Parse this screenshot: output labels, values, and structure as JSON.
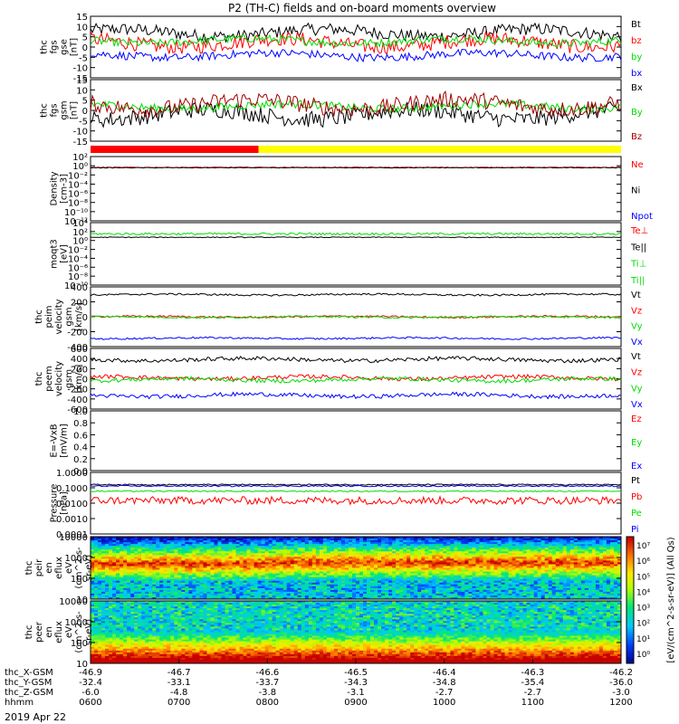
{
  "title": "P2 (TH-C) fields and on-board moments overview",
  "date": "2019 Apr 22",
  "colors": {
    "black": "#000000",
    "red": "#ff0000",
    "green": "#00dd00",
    "blue": "#0000ff",
    "darkred": "#a00000",
    "yellow": "#ffff00"
  },
  "bar": {
    "red_until_hour": 7.9,
    "end_color": "yellow",
    "start_color": "red"
  },
  "panels": [
    {
      "id": "fgs-gse",
      "ylabel": [
        "thc",
        "fgs",
        "gse",
        "[nT]"
      ],
      "scale": "linear",
      "ylim": [
        -15,
        15
      ],
      "ticks": [
        "15",
        "10",
        "5",
        "0",
        "-5",
        "-10",
        "-15"
      ],
      "legend": [
        {
          "label": "Bt",
          "color": "black"
        },
        {
          "label": "bz",
          "color": "red"
        },
        {
          "label": "by",
          "color": "green"
        },
        {
          "label": "bx",
          "color": "blue"
        }
      ],
      "series": [
        {
          "name": "Bt",
          "color": "black",
          "base": 7,
          "noise": 3
        },
        {
          "name": "bz",
          "color": "red",
          "base": 2,
          "noise": 3.5
        },
        {
          "name": "by",
          "color": "green",
          "base": 3,
          "noise": 2
        },
        {
          "name": "bx",
          "color": "blue",
          "base": -4,
          "noise": 2
        }
      ]
    },
    {
      "id": "fgs-gsm",
      "ylabel": [
        "thc",
        "fgs",
        "gsm",
        "[nT]"
      ],
      "scale": "linear",
      "ylim": [
        -15,
        15
      ],
      "ticks": [
        "15",
        "10",
        "5",
        "0",
        "-5",
        "-10",
        "-15"
      ],
      "legend": [
        {
          "label": "Bx",
          "color": "black"
        },
        {
          "label": "By",
          "color": "green"
        },
        {
          "label": "Bz",
          "color": "darkred"
        }
      ],
      "series": [
        {
          "name": "Bx",
          "color": "black",
          "base": -2,
          "noise": 4
        },
        {
          "name": "By",
          "color": "green",
          "base": 2,
          "noise": 2
        },
        {
          "name": "Bz",
          "color": "darkred",
          "base": 3,
          "noise": 4
        }
      ]
    },
    {
      "id": "density",
      "ylabel": [
        "Density",
        "[cm-3]"
      ],
      "scale": "log",
      "ylim": [
        1e-13,
        100
      ],
      "ticks": [
        "10²",
        "10⁰",
        "10⁻²",
        "10⁻⁴",
        "10⁻⁶",
        "10⁻⁸",
        "10⁻¹⁰",
        "10⁻¹²"
      ],
      "legend": [
        {
          "label": "Ne",
          "color": "red"
        },
        {
          "label": "Ni",
          "color": "black"
        },
        {
          "label": "Npot",
          "color": "blue"
        }
      ],
      "series": [
        {
          "name": "Ne",
          "color": "red",
          "base": 0.3,
          "noise": 0.2
        },
        {
          "name": "Ni",
          "color": "black",
          "base": 0.25,
          "noise": 0.15
        }
      ]
    },
    {
      "id": "temperature",
      "ylabel": [
        "moqt3",
        "[eV]"
      ],
      "scale": "log",
      "ylim": [
        1e-11,
        10000
      ],
      "ticks": [
        "10⁴",
        "10²",
        "10⁰",
        "10⁻²",
        "10⁻⁴",
        "10⁻⁶",
        "10⁻⁸",
        "10⁻¹⁰"
      ],
      "legend": [
        {
          "label": "Te⊥",
          "color": "red"
        },
        {
          "label": "Te||",
          "color": "black"
        },
        {
          "label": "Ti⊥",
          "color": "green"
        },
        {
          "label": "Ti||",
          "color": "green"
        }
      ],
      "series": [
        {
          "name": "Te",
          "color": "black",
          "base": 3,
          "noise": 0.2
        },
        {
          "name": "Ti",
          "color": "green",
          "base": 20,
          "noise": 0.5
        }
      ]
    },
    {
      "id": "peim-velocity",
      "ylabel": [
        "thc",
        "peim",
        "velocity",
        "gsm",
        "[km/s]"
      ],
      "scale": "linear",
      "ylim": [
        -500,
        500
      ],
      "ticks": [
        "400",
        "200",
        "0",
        "-200",
        "-400"
      ],
      "legend": [
        {
          "label": "Vt",
          "color": "black"
        },
        {
          "label": "Vz",
          "color": "red"
        },
        {
          "label": "Vy",
          "color": "green"
        },
        {
          "label": "Vx",
          "color": "blue"
        }
      ],
      "series": [
        {
          "name": "Vt",
          "color": "black",
          "base": 370,
          "noise": 15
        },
        {
          "name": "Vz",
          "color": "red",
          "base": 0,
          "noise": 15
        },
        {
          "name": "Vy",
          "color": "green",
          "base": -5,
          "noise": 15
        },
        {
          "name": "Vx",
          "color": "blue",
          "base": -360,
          "noise": 15
        }
      ]
    },
    {
      "id": "peem-velocity",
      "ylabel": [
        "thc",
        "peem",
        "velocity",
        "gsm",
        "[km/s]"
      ],
      "scale": "linear",
      "ylim": [
        -600,
        600
      ],
      "ticks": [
        "600",
        "400",
        "200",
        "0",
        "-200",
        "-400",
        "-600"
      ],
      "legend": [
        {
          "label": "Vt",
          "color": "black"
        },
        {
          "label": "Vz",
          "color": "red"
        },
        {
          "label": "Vy",
          "color": "green"
        },
        {
          "label": "Vx",
          "color": "blue"
        }
      ],
      "series": [
        {
          "name": "Vt",
          "color": "black",
          "base": 380,
          "noise": 40
        },
        {
          "name": "Vz",
          "color": "red",
          "base": 20,
          "noise": 40
        },
        {
          "name": "Vy",
          "color": "green",
          "base": -20,
          "noise": 40
        },
        {
          "name": "Vx",
          "color": "blue",
          "base": -330,
          "noise": 40
        }
      ]
    },
    {
      "id": "efield",
      "ylabel": [
        "E=-VxB",
        "[mV/m]"
      ],
      "scale": "linear",
      "ylim": [
        0,
        1
      ],
      "ticks": [
        "1.0",
        "0.8",
        "0.6",
        "0.4",
        "0.2",
        "0.0"
      ],
      "legend": [
        {
          "label": "Ez",
          "color": "red"
        },
        {
          "label": "Ey",
          "color": "green"
        },
        {
          "label": "Ex",
          "color": "blue"
        }
      ],
      "series": []
    },
    {
      "id": "pressure",
      "ylabel": [
        "Pressure",
        "[nPa]"
      ],
      "scale": "log",
      "ylim": [
        0.0001,
        1
      ],
      "ticks": [
        "1.0000",
        "0.1000",
        "0.0100",
        "0.0010",
        "0.0001"
      ],
      "legend": [
        {
          "label": "Pt",
          "color": "black"
        },
        {
          "label": "Pb",
          "color": "red"
        },
        {
          "label": "Pe",
          "color": "green"
        },
        {
          "label": "Pi",
          "color": "blue"
        }
      ],
      "series": [
        {
          "name": "Pt",
          "color": "black",
          "base": 0.16,
          "noise": 0.08
        },
        {
          "name": "Pi",
          "color": "blue",
          "base": 0.13,
          "noise": 0.08
        },
        {
          "name": "Pe",
          "color": "green",
          "base": 0.06,
          "noise": 0.08
        },
        {
          "name": "Pb",
          "color": "red",
          "base": 0.015,
          "noise": 0.5
        }
      ]
    },
    {
      "id": "peir-spec",
      "ylabel": [
        "thc",
        "peir",
        "en",
        "eflux",
        "eV",
        "(cm^2-s-",
        "sr-eV)"
      ],
      "scale": "log",
      "spectrogram": true,
      "ylim": [
        5,
        40000
      ],
      "ticks": [
        "10000",
        "1000",
        "100",
        "10"
      ]
    },
    {
      "id": "peer-spec",
      "ylabel": [
        "thc",
        "peer",
        "en",
        "eflux",
        "eV",
        "(cm^2-s-",
        "sr-eV)"
      ],
      "scale": "log",
      "spectrogram": true,
      "ylim": [
        5,
        40000
      ],
      "ticks": [
        "10000",
        "1000",
        "100",
        "10"
      ]
    }
  ],
  "colorbar": {
    "label": "[eV/(cm^2-s-sr-eV)] (All Qs)",
    "ticks": [
      "10⁷",
      "10⁶",
      "10⁵",
      "10⁴",
      "10³",
      "10²",
      "10¹",
      "10⁰"
    ]
  },
  "xaxis": {
    "rows": [
      {
        "label": "thc_X-GSM",
        "values": [
          "-46.9",
          "-46.7",
          "-46.6",
          "-46.5",
          "-46.4",
          "-46.3",
          "-46.2"
        ]
      },
      {
        "label": "thc_Y-GSM",
        "values": [
          "-32.4",
          "-33.1",
          "-33.7",
          "-34.3",
          "-34.8",
          "-35.4",
          "-36.0"
        ]
      },
      {
        "label": "thc_Z-GSM",
        "values": [
          "-6.0",
          "-4.8",
          "-3.8",
          "-3.1",
          "-2.7",
          "-2.7",
          "-3.0"
        ]
      },
      {
        "label": "hhmm",
        "values": [
          "0600",
          "0700",
          "0800",
          "0900",
          "1000",
          "1100",
          "1200"
        ]
      }
    ],
    "hours": [
      6,
      7,
      8,
      9,
      10,
      11,
      12
    ]
  },
  "chart_data": {
    "type": "line",
    "title": "P2 (TH-C) fields and on-board moments overview",
    "x_range_hours": [
      6,
      12
    ],
    "xlabel": "hhmm",
    "date": "2019 Apr 22"
  }
}
